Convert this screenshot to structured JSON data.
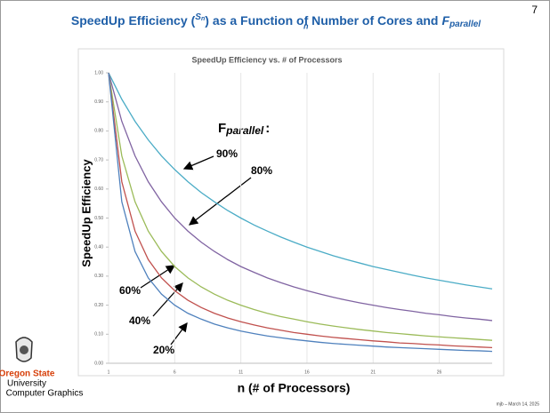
{
  "slide": {
    "number": "7",
    "title": {
      "before": "SpeedUp Efficiency",
      "num": "S",
      "num_sub": "n",
      "den": "n",
      "after": "as a Function of Number of Cores and",
      "f": "F",
      "f_sub": "parallel"
    },
    "fparallel": {
      "f": "F",
      "sub": "parallel",
      "colon": ":"
    },
    "logo": {
      "line1": "Oregon State",
      "line2": "University",
      "line3": "Computer Graphics"
    },
    "footer": "mjb – March 14, 2025"
  },
  "chart_data": {
    "type": "line",
    "title": "SpeedUp Efficiency vs. # of Processors",
    "x_label": "n (# of Processors)",
    "y_label": "SpeedUp Efficiency",
    "x": [
      1,
      2,
      3,
      4,
      5,
      6,
      7,
      8,
      9,
      10,
      11,
      12,
      13,
      14,
      15,
      16,
      17,
      18,
      19,
      20,
      21,
      22,
      23,
      24,
      25,
      26,
      27,
      28,
      29,
      30
    ],
    "xlim": [
      1,
      30
    ],
    "xticks": [
      1,
      6,
      11,
      16,
      21,
      26
    ],
    "ylim": [
      0,
      1
    ],
    "yticks": [
      {
        "value": 0,
        "label": "0.00"
      },
      {
        "value": 0.1,
        "label": "0.10"
      },
      {
        "value": 0.2,
        "label": "0.20"
      },
      {
        "value": 0.3,
        "label": "0.30"
      },
      {
        "value": 0.4,
        "label": "0.40"
      },
      {
        "value": 0.5,
        "label": "0.50"
      },
      {
        "value": 0.6,
        "label": "0.60"
      },
      {
        "value": 0.7,
        "label": "0.70"
      },
      {
        "value": 0.8,
        "label": "0.80"
      },
      {
        "value": 0.9,
        "label": "0.90"
      },
      {
        "value": 1,
        "label": "1.00"
      }
    ],
    "grid": true,
    "series": [
      {
        "name": "90%",
        "color": "#4bacc6",
        "values": [
          1,
          0.909,
          0.833,
          0.769,
          0.714,
          0.667,
          0.625,
          0.588,
          0.556,
          0.526,
          0.5,
          0.476,
          0.455,
          0.435,
          0.417,
          0.4,
          0.385,
          0.37,
          0.357,
          0.345,
          0.333,
          0.323,
          0.313,
          0.303,
          0.294,
          0.286,
          0.278,
          0.27,
          0.263,
          0.256
        ]
      },
      {
        "name": "80%",
        "color": "#8064a2",
        "values": [
          1,
          0.833,
          0.714,
          0.625,
          0.556,
          0.5,
          0.455,
          0.417,
          0.385,
          0.357,
          0.333,
          0.313,
          0.294,
          0.278,
          0.263,
          0.25,
          0.238,
          0.227,
          0.217,
          0.208,
          0.2,
          0.192,
          0.185,
          0.179,
          0.172,
          0.167,
          0.161,
          0.156,
          0.152,
          0.147
        ]
      },
      {
        "name": "60%",
        "color": "#9bbb59",
        "values": [
          1,
          0.714,
          0.556,
          0.455,
          0.385,
          0.333,
          0.294,
          0.263,
          0.238,
          0.217,
          0.2,
          0.185,
          0.172,
          0.161,
          0.152,
          0.143,
          0.135,
          0.128,
          0.122,
          0.116,
          0.111,
          0.106,
          0.102,
          0.098,
          0.094,
          0.091,
          0.088,
          0.085,
          0.082,
          0.079
        ]
      },
      {
        "name": "40%",
        "color": "#c0504d",
        "values": [
          1,
          0.625,
          0.455,
          0.357,
          0.294,
          0.25,
          0.217,
          0.192,
          0.172,
          0.156,
          0.143,
          0.132,
          0.122,
          0.114,
          0.106,
          0.1,
          0.094,
          0.089,
          0.085,
          0.081,
          0.077,
          0.074,
          0.07,
          0.068,
          0.065,
          0.063,
          0.06,
          0.058,
          0.056,
          0.054
        ]
      },
      {
        "name": "20%",
        "color": "#4f81bd",
        "values": [
          1,
          0.556,
          0.385,
          0.294,
          0.238,
          0.2,
          0.172,
          0.152,
          0.135,
          0.122,
          0.111,
          0.102,
          0.094,
          0.088,
          0.082,
          0.077,
          0.072,
          0.068,
          0.065,
          0.062,
          0.059,
          0.056,
          0.054,
          0.052,
          0.05,
          0.048,
          0.046,
          0.044,
          0.043,
          0.041
        ]
      }
    ]
  }
}
